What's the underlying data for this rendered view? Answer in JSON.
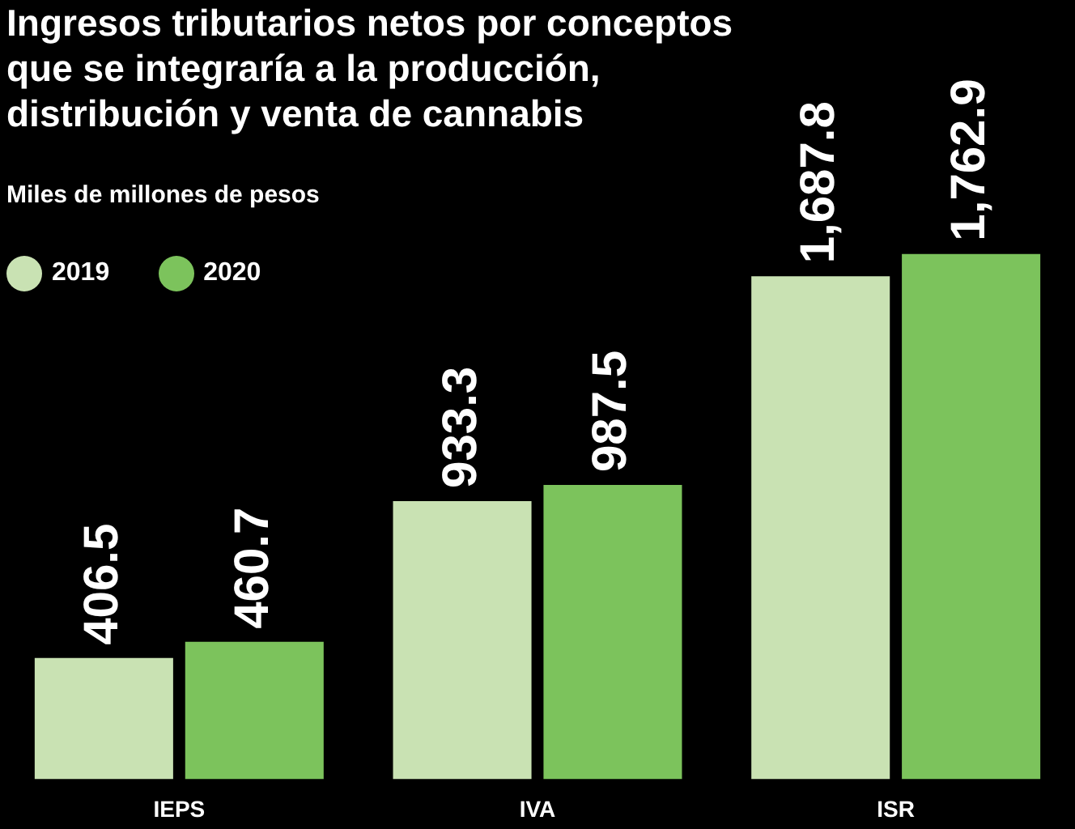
{
  "chart_data": {
    "type": "bar",
    "title": "Ingresos tributarios netos por conceptos que se integraría a la producción, distribución y venta de cannabis",
    "subtitle": "Miles de millones de pesos",
    "categories": [
      "IEPS",
      "IVA",
      "ISR"
    ],
    "series": [
      {
        "name": "2019",
        "color": "#c9e2b3",
        "values": [
          406.5,
          933.3,
          1687.8
        ],
        "value_labels": [
          "406.5",
          "933.3",
          "1,687.8"
        ]
      },
      {
        "name": "2020",
        "color": "#7cc35c",
        "values": [
          460.7,
          987.5,
          1762.9
        ],
        "value_labels": [
          "460.7",
          "987.5",
          "1,762.9"
        ]
      }
    ],
    "legend": "top left"
  }
}
